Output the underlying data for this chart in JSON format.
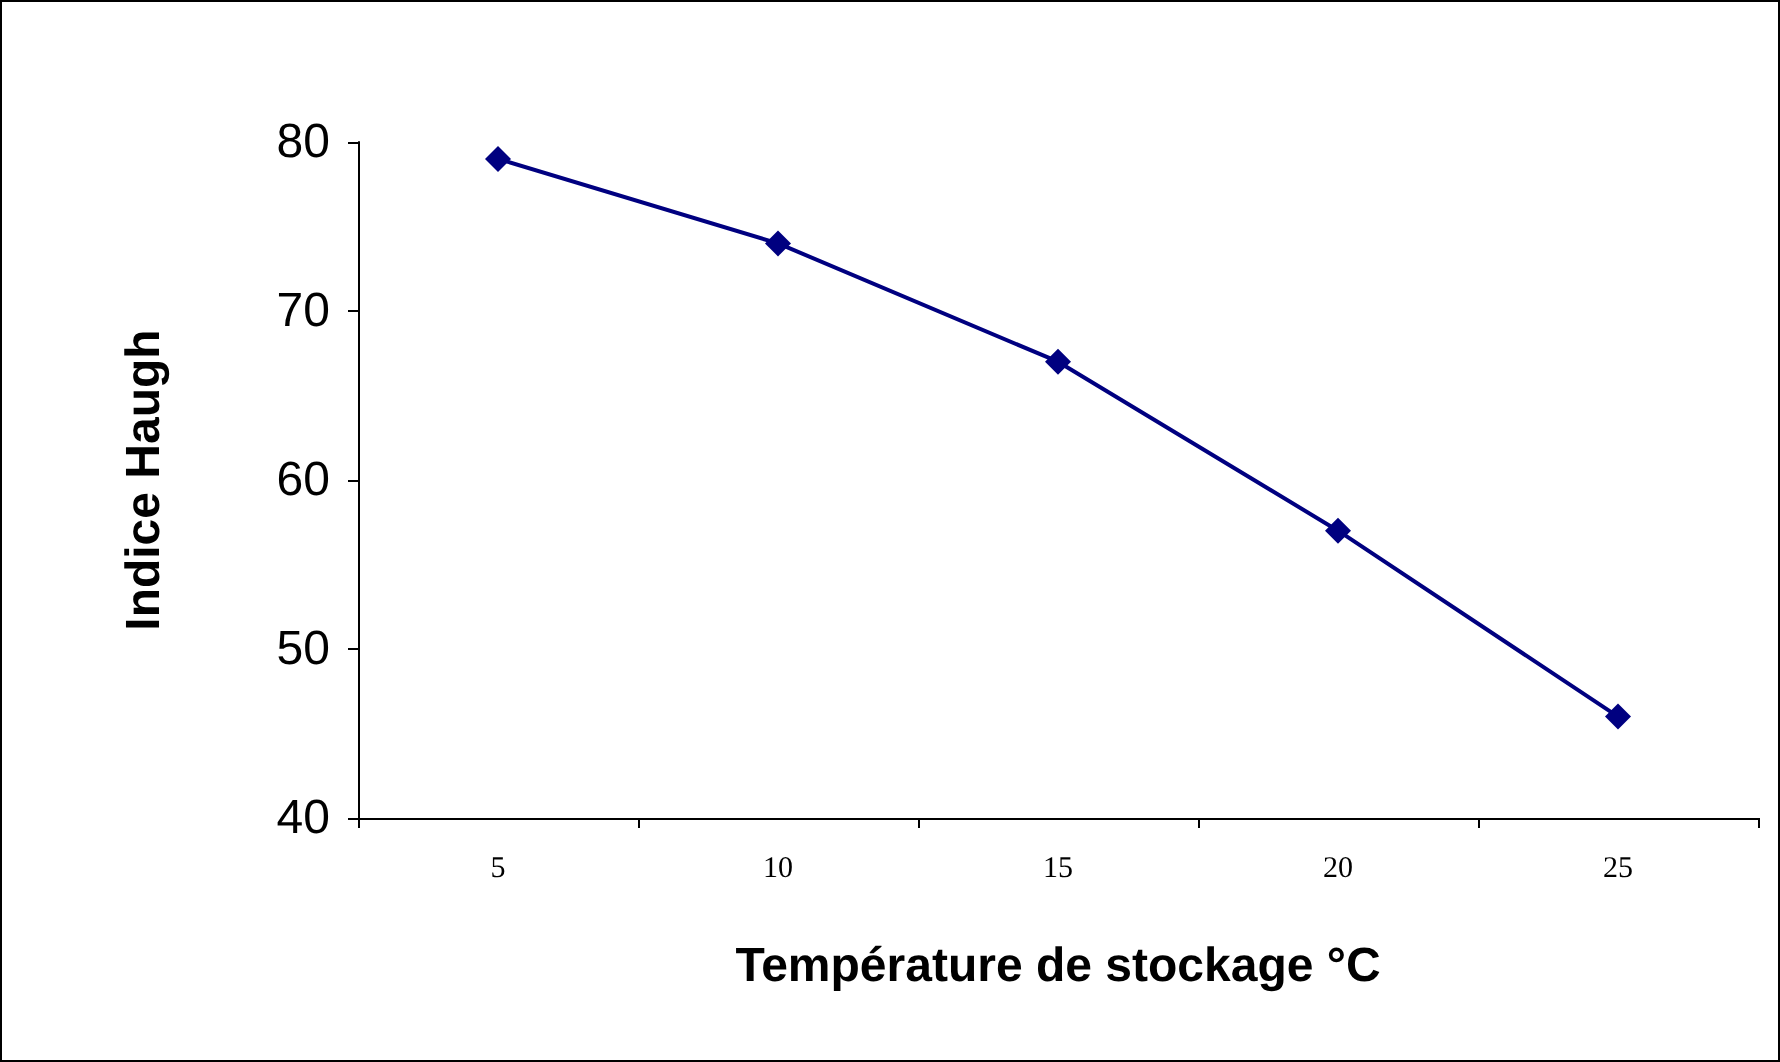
{
  "chart_data": {
    "type": "line",
    "xlabel": "Température de stockage °C",
    "ylabel": "Indice Haugh",
    "categories": [
      "5",
      "10",
      "15",
      "20",
      "25"
    ],
    "series": [
      {
        "color": "#000080",
        "values": [
          79,
          74,
          67,
          57,
          46
        ]
      }
    ],
    "ylim": [
      40,
      80
    ],
    "yticks": [
      40,
      50,
      60,
      70,
      80
    ],
    "grid": false,
    "marker": "diamond",
    "line_style": "solid"
  }
}
